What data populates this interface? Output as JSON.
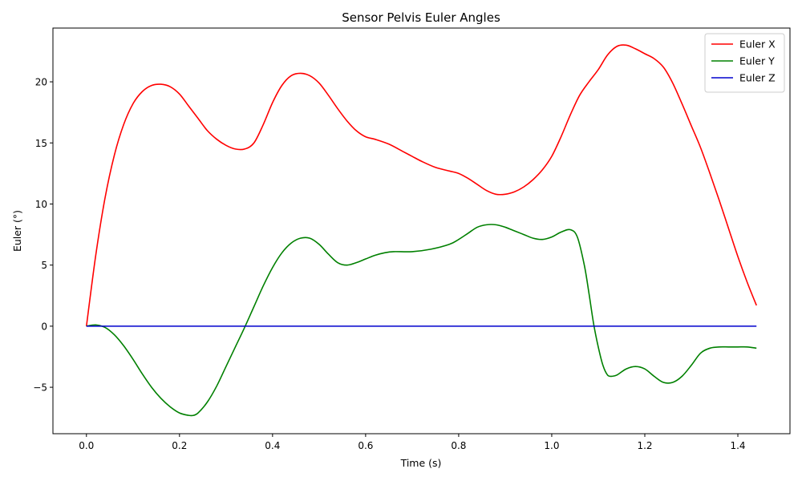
{
  "chart_data": {
    "type": "line",
    "title": "Sensor Pelvis Euler Angles",
    "xlabel": "Time (s)",
    "ylabel": "Euler (°)",
    "xlim": [
      -0.072,
      1.512
    ],
    "ylim": [
      -8.8,
      24.4
    ],
    "xticks": [
      0.0,
      0.2,
      0.4,
      0.6,
      0.8,
      1.0,
      1.2,
      1.4
    ],
    "xtick_labels": [
      "0.0",
      "0.2",
      "0.4",
      "0.6",
      "0.8",
      "1.0",
      "1.2",
      "1.4"
    ],
    "yticks": [
      -5,
      0,
      5,
      10,
      15,
      20
    ],
    "ytick_labels": [
      "−5",
      "0",
      "5",
      "10",
      "15",
      "20"
    ],
    "grid": false,
    "legend_position": "top-right",
    "series": [
      {
        "name": "Euler X",
        "color": "#ff0000",
        "x": [
          0.0,
          0.02,
          0.04,
          0.06,
          0.08,
          0.1,
          0.12,
          0.14,
          0.16,
          0.18,
          0.2,
          0.22,
          0.24,
          0.26,
          0.28,
          0.3,
          0.32,
          0.34,
          0.36,
          0.38,
          0.4,
          0.42,
          0.44,
          0.46,
          0.48,
          0.5,
          0.52,
          0.54,
          0.56,
          0.58,
          0.6,
          0.62,
          0.65,
          0.68,
          0.7,
          0.72,
          0.75,
          0.78,
          0.8,
          0.82,
          0.84,
          0.86,
          0.88,
          0.9,
          0.92,
          0.94,
          0.96,
          0.98,
          1.0,
          1.02,
          1.04,
          1.06,
          1.08,
          1.1,
          1.12,
          1.14,
          1.16,
          1.18,
          1.2,
          1.22,
          1.24,
          1.26,
          1.28,
          1.3,
          1.32,
          1.34,
          1.36,
          1.38,
          1.4,
          1.42,
          1.44
        ],
        "y": [
          0.0,
          5.8,
          10.5,
          14.0,
          16.5,
          18.2,
          19.2,
          19.7,
          19.8,
          19.6,
          19.0,
          18.0,
          17.0,
          16.0,
          15.3,
          14.8,
          14.5,
          14.5,
          15.0,
          16.5,
          18.3,
          19.7,
          20.5,
          20.7,
          20.5,
          19.9,
          18.9,
          17.8,
          16.8,
          16.0,
          15.5,
          15.3,
          14.9,
          14.3,
          13.9,
          13.5,
          13.0,
          12.7,
          12.5,
          12.1,
          11.6,
          11.1,
          10.8,
          10.8,
          11.0,
          11.4,
          12.0,
          12.8,
          13.9,
          15.5,
          17.3,
          18.9,
          20.0,
          21.0,
          22.2,
          22.9,
          23.0,
          22.7,
          22.3,
          21.9,
          21.2,
          19.9,
          18.2,
          16.4,
          14.6,
          12.5,
          10.3,
          8.0,
          5.7,
          3.6,
          1.7
        ]
      },
      {
        "name": "Euler Y",
        "color": "#008000",
        "x": [
          0.0,
          0.02,
          0.04,
          0.06,
          0.08,
          0.1,
          0.12,
          0.14,
          0.16,
          0.18,
          0.2,
          0.22,
          0.23,
          0.24,
          0.26,
          0.28,
          0.3,
          0.32,
          0.34,
          0.36,
          0.38,
          0.4,
          0.42,
          0.44,
          0.46,
          0.48,
          0.5,
          0.52,
          0.54,
          0.56,
          0.58,
          0.6,
          0.62,
          0.64,
          0.66,
          0.7,
          0.74,
          0.78,
          0.8,
          0.82,
          0.84,
          0.86,
          0.88,
          0.9,
          0.92,
          0.94,
          0.96,
          0.98,
          1.0,
          1.02,
          1.04,
          1.055,
          1.07,
          1.08,
          1.09,
          1.1,
          1.11,
          1.12,
          1.13,
          1.14,
          1.16,
          1.18,
          1.2,
          1.22,
          1.24,
          1.26,
          1.28,
          1.3,
          1.32,
          1.34,
          1.36,
          1.38,
          1.4,
          1.42,
          1.44
        ],
        "y": [
          0.0,
          0.1,
          -0.1,
          -0.7,
          -1.6,
          -2.7,
          -3.9,
          -5.0,
          -5.9,
          -6.6,
          -7.1,
          -7.3,
          -7.3,
          -7.1,
          -6.2,
          -4.9,
          -3.3,
          -1.7,
          -0.1,
          1.6,
          3.3,
          4.8,
          6.0,
          6.8,
          7.2,
          7.2,
          6.7,
          5.9,
          5.2,
          5.0,
          5.2,
          5.5,
          5.8,
          6.0,
          6.1,
          6.1,
          6.3,
          6.7,
          7.1,
          7.6,
          8.1,
          8.3,
          8.3,
          8.1,
          7.8,
          7.5,
          7.2,
          7.1,
          7.3,
          7.7,
          7.9,
          7.3,
          5.0,
          2.7,
          0.2,
          -1.7,
          -3.2,
          -4.0,
          -4.1,
          -4.0,
          -3.5,
          -3.3,
          -3.5,
          -4.1,
          -4.6,
          -4.6,
          -4.1,
          -3.2,
          -2.2,
          -1.8,
          -1.7,
          -1.7,
          -1.7,
          -1.7,
          -1.8
        ]
      },
      {
        "name": "Euler Z",
        "color": "#0000cd",
        "x": [
          0.0,
          1.44
        ],
        "y": [
          0.0,
          0.0
        ]
      }
    ]
  }
}
